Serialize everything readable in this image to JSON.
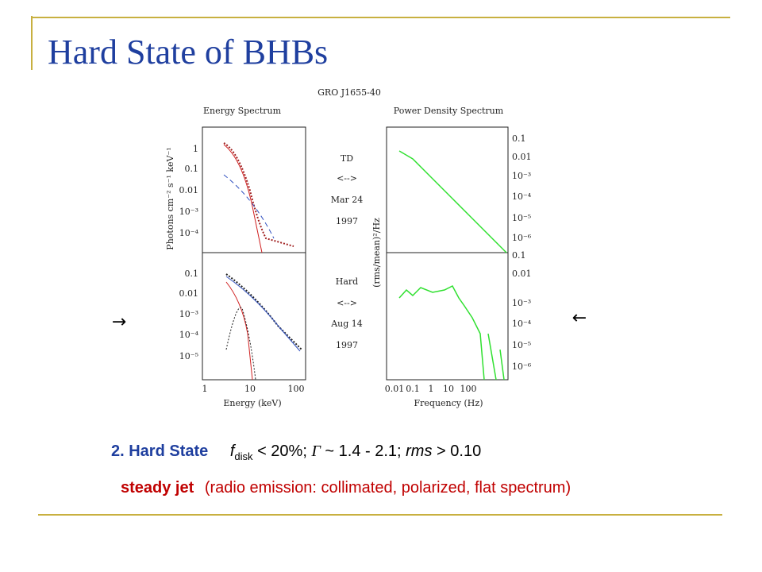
{
  "title": "Hard State of BHBs",
  "figure": {
    "source": "GRO J1655-40",
    "left_title": "Energy Spectrum",
    "right_title": "Power Density Spectrum",
    "left_ylabel": "Photons cm⁻² s⁻¹ keV⁻¹",
    "right_ylabel": "(rms/mean)²/Hz",
    "left_xlabel": "Energy (keV)",
    "right_xlabel": "Frequency (Hz)",
    "upper_state": [
      "TD",
      "<-->",
      "Mar 24",
      "1997"
    ],
    "lower_state": [
      "Hard",
      "<-->",
      "Aug 14",
      "1997"
    ],
    "left_upper_yticks": [
      "1",
      "0.1",
      "0.01",
      "10⁻³",
      "10⁻⁴"
    ],
    "left_lower_yticks": [
      "0.1",
      "0.01",
      "10⁻³",
      "10⁻⁴",
      "10⁻⁵"
    ],
    "left_xticks": [
      "1",
      "10",
      "100"
    ],
    "right_upper_yticks": [
      "0.1",
      "0.01",
      "10⁻³",
      "10⁻⁴",
      "10⁻⁵",
      "10⁻⁶"
    ],
    "right_lower_yticks": [
      "0.1",
      "0.01",
      "10⁻³",
      "10⁻⁴",
      "10⁻⁵",
      "10⁻⁶"
    ],
    "right_xticks": [
      "0.01",
      "0.1",
      "1",
      "10",
      "100"
    ]
  },
  "arrows": [
    "→",
    "←"
  ],
  "state": {
    "label": "2. Hard State",
    "f": "f",
    "sub": "disk",
    "part1": " < 20%; ",
    "gamma": "Γ",
    "part2": " ~ 1.4 - 2.1; ",
    "rms": "rms",
    "part3": " > 0.10"
  },
  "jet": {
    "label": "steady jet",
    "desc": "(radio emission: collimated, polarized, flat spectrum)"
  }
}
